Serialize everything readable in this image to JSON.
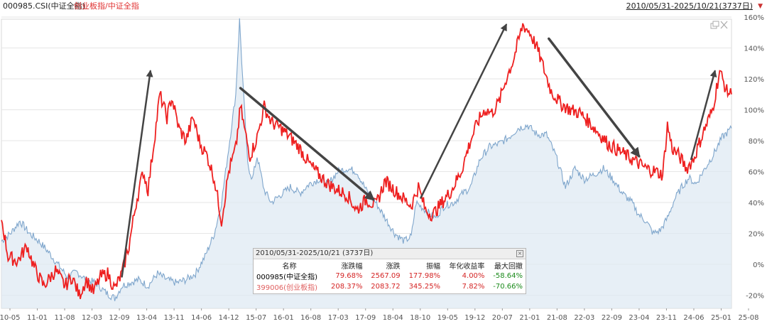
{
  "header": {
    "title_main": "000985.CSI(中证全指)",
    "title_ratio": "创业板指/中证全指",
    "range_label": "2010/05/31-2025/10/21(3737日)"
  },
  "colors": {
    "ratio_line": "#ee2020",
    "index_line": "#7fa6cc",
    "index_fill": "#dde8f2",
    "arrow": "#444444",
    "grid": "#e6e6e6"
  },
  "chart_data": {
    "type": "line",
    "x_ticks": [
      "10-05",
      "11-01",
      "11-08",
      "12-03",
      "12-09",
      "13-04",
      "13-11",
      "14-06",
      "14-12",
      "15-07",
      "16-01",
      "16-08",
      "17-03",
      "17-09",
      "18-04",
      "18-10",
      "19-05",
      "19-12",
      "20-07",
      "21-01",
      "21-08",
      "22-03",
      "22-09",
      "23-04",
      "23-11",
      "24-06",
      "25-01",
      "25-08"
    ],
    "y_ticks": [
      "-20%",
      "0%",
      "20%",
      "40%",
      "60%",
      "80%",
      "100%",
      "120%",
      "140%",
      "160%"
    ],
    "ylim": [
      -24,
      162
    ],
    "xlim": [
      2010.41,
      2025.8
    ],
    "series": [
      {
        "name": "创业板指/中证全指",
        "color": "#ee2020",
        "points": [
          [
            2010.41,
            30
          ],
          [
            2010.55,
            5
          ],
          [
            2010.75,
            2
          ],
          [
            2010.95,
            12
          ],
          [
            2011.1,
            -2
          ],
          [
            2011.3,
            -14
          ],
          [
            2011.55,
            -4
          ],
          [
            2011.75,
            -14
          ],
          [
            2011.9,
            -8
          ],
          [
            2012.05,
            -20
          ],
          [
            2012.2,
            -10
          ],
          [
            2012.35,
            -18
          ],
          [
            2012.5,
            -8
          ],
          [
            2012.65,
            -6
          ],
          [
            2012.8,
            -16
          ],
          [
            2012.95,
            -6
          ],
          [
            2013.1,
            12
          ],
          [
            2013.25,
            40
          ],
          [
            2013.4,
            60
          ],
          [
            2013.5,
            48
          ],
          [
            2013.65,
            85
          ],
          [
            2013.75,
            110
          ],
          [
            2013.9,
            95
          ],
          [
            2014.0,
            108
          ],
          [
            2014.15,
            88
          ],
          [
            2014.3,
            80
          ],
          [
            2014.45,
            95
          ],
          [
            2014.6,
            78
          ],
          [
            2014.75,
            70
          ],
          [
            2014.9,
            55
          ],
          [
            2015.05,
            28
          ],
          [
            2015.2,
            60
          ],
          [
            2015.35,
            75
          ],
          [
            2015.45,
            102
          ],
          [
            2015.55,
            85
          ],
          [
            2015.65,
            70
          ],
          [
            2015.8,
            82
          ],
          [
            2015.95,
            102
          ],
          [
            2016.1,
            92
          ],
          [
            2016.3,
            88
          ],
          [
            2016.5,
            82
          ],
          [
            2016.7,
            75
          ],
          [
            2016.9,
            65
          ],
          [
            2017.1,
            58
          ],
          [
            2017.3,
            52
          ],
          [
            2017.5,
            48
          ],
          [
            2017.7,
            45
          ],
          [
            2017.9,
            35
          ],
          [
            2018.1,
            42
          ],
          [
            2018.3,
            38
          ],
          [
            2018.5,
            54
          ],
          [
            2018.7,
            48
          ],
          [
            2018.9,
            42
          ],
          [
            2019.05,
            38
          ],
          [
            2019.2,
            50
          ],
          [
            2019.35,
            35
          ],
          [
            2019.5,
            32
          ],
          [
            2019.7,
            40
          ],
          [
            2019.9,
            48
          ],
          [
            2020.1,
            60
          ],
          [
            2020.3,
            80
          ],
          [
            2020.45,
            92
          ],
          [
            2020.6,
            100
          ],
          [
            2020.75,
            98
          ],
          [
            2020.9,
            105
          ],
          [
            2021.05,
            120
          ],
          [
            2021.2,
            132
          ],
          [
            2021.4,
            155
          ],
          [
            2021.55,
            150
          ],
          [
            2021.7,
            140
          ],
          [
            2021.85,
            126
          ],
          [
            2022.0,
            112
          ],
          [
            2022.2,
            104
          ],
          [
            2022.4,
            100
          ],
          [
            2022.6,
            98
          ],
          [
            2022.8,
            92
          ],
          [
            2023.0,
            85
          ],
          [
            2023.2,
            78
          ],
          [
            2023.4,
            74
          ],
          [
            2023.6,
            70
          ],
          [
            2023.8,
            66
          ],
          [
            2024.0,
            62
          ],
          [
            2024.2,
            60
          ],
          [
            2024.35,
            58
          ],
          [
            2024.45,
            90
          ],
          [
            2024.55,
            75
          ],
          [
            2024.7,
            70
          ],
          [
            2024.85,
            62
          ],
          [
            2025.0,
            68
          ],
          [
            2025.2,
            85
          ],
          [
            2025.4,
            100
          ],
          [
            2025.55,
            125
          ],
          [
            2025.7,
            112
          ],
          [
            2025.8,
            110
          ]
        ]
      },
      {
        "name": "000985.CSI(中证全指)",
        "color": "#7fa6cc",
        "points": [
          [
            2010.41,
            15
          ],
          [
            2010.6,
            20
          ],
          [
            2010.8,
            28
          ],
          [
            2011.0,
            20
          ],
          [
            2011.2,
            15
          ],
          [
            2011.4,
            8
          ],
          [
            2011.6,
            0
          ],
          [
            2011.8,
            -8
          ],
          [
            2012.0,
            -5
          ],
          [
            2012.2,
            -10
          ],
          [
            2012.4,
            -12
          ],
          [
            2012.6,
            -18
          ],
          [
            2012.8,
            -22
          ],
          [
            2012.95,
            -14
          ],
          [
            2013.1,
            -12
          ],
          [
            2013.3,
            -10
          ],
          [
            2013.5,
            -14
          ],
          [
            2013.7,
            -6
          ],
          [
            2013.9,
            -10
          ],
          [
            2014.1,
            -12
          ],
          [
            2014.3,
            -10
          ],
          [
            2014.5,
            -6
          ],
          [
            2014.7,
            5
          ],
          [
            2014.9,
            20
          ],
          [
            2015.05,
            40
          ],
          [
            2015.2,
            75
          ],
          [
            2015.35,
            110
          ],
          [
            2015.43,
            158
          ],
          [
            2015.5,
            118
          ],
          [
            2015.6,
            65
          ],
          [
            2015.7,
            55
          ],
          [
            2015.8,
            70
          ],
          [
            2015.95,
            48
          ],
          [
            2016.1,
            40
          ],
          [
            2016.3,
            45
          ],
          [
            2016.5,
            50
          ],
          [
            2016.7,
            46
          ],
          [
            2016.9,
            52
          ],
          [
            2017.1,
            55
          ],
          [
            2017.3,
            52
          ],
          [
            2017.5,
            60
          ],
          [
            2017.7,
            62
          ],
          [
            2017.9,
            60
          ],
          [
            2018.1,
            48
          ],
          [
            2018.3,
            40
          ],
          [
            2018.5,
            30
          ],
          [
            2018.7,
            20
          ],
          [
            2018.9,
            15
          ],
          [
            2019.05,
            18
          ],
          [
            2019.15,
            40
          ],
          [
            2019.35,
            35
          ],
          [
            2019.55,
            30
          ],
          [
            2019.75,
            38
          ],
          [
            2019.95,
            40
          ],
          [
            2020.1,
            45
          ],
          [
            2020.3,
            50
          ],
          [
            2020.5,
            68
          ],
          [
            2020.7,
            76
          ],
          [
            2020.9,
            78
          ],
          [
            2021.1,
            82
          ],
          [
            2021.3,
            88
          ],
          [
            2021.5,
            90
          ],
          [
            2021.7,
            84
          ],
          [
            2021.9,
            84
          ],
          [
            2022.1,
            70
          ],
          [
            2022.3,
            50
          ],
          [
            2022.5,
            62
          ],
          [
            2022.7,
            55
          ],
          [
            2022.9,
            58
          ],
          [
            2023.1,
            62
          ],
          [
            2023.3,
            55
          ],
          [
            2023.5,
            46
          ],
          [
            2023.7,
            40
          ],
          [
            2023.85,
            32
          ],
          [
            2024.0,
            28
          ],
          [
            2024.15,
            20
          ],
          [
            2024.3,
            22
          ],
          [
            2024.45,
            30
          ],
          [
            2024.6,
            42
          ],
          [
            2024.75,
            50
          ],
          [
            2024.9,
            56
          ],
          [
            2025.05,
            52
          ],
          [
            2025.2,
            60
          ],
          [
            2025.4,
            70
          ],
          [
            2025.6,
            82
          ],
          [
            2025.8,
            88
          ]
        ]
      }
    ],
    "arrows": [
      {
        "from": [
          2012.95,
          -8
        ],
        "to": [
          2013.55,
          125
        ],
        "weight": "thin"
      },
      {
        "from": [
          2015.45,
          114
        ],
        "to": [
          2018.25,
          42
        ],
        "weight": "thick"
      },
      {
        "from": [
          2019.25,
          43
        ],
        "to": [
          2021.05,
          155
        ],
        "weight": "thin"
      },
      {
        "from": [
          2021.95,
          146
        ],
        "to": [
          2023.85,
          70
        ],
        "weight": "thick"
      },
      {
        "from": [
          2024.95,
          68
        ],
        "to": [
          2025.45,
          125
        ],
        "weight": "thin"
      }
    ]
  },
  "stats": {
    "header": "2010/05/31-2025/10/21 (3737日)",
    "close": "×",
    "columns": [
      "名称",
      "涨跌幅",
      "涨跌",
      "振幅",
      "年化收益率",
      "最大回撤"
    ],
    "rows": [
      {
        "name": "000985(中证全指)",
        "change_pct": "79.68%",
        "change": "2567.09",
        "amplitude": "177.98%",
        "annual": "4.00%",
        "max_dd": "-58.64%"
      },
      {
        "name": "399006(创业板指)",
        "change_pct": "208.37%",
        "change": "2083.72",
        "amplitude": "345.25%",
        "annual": "7.82%",
        "max_dd": "-70.66%"
      }
    ]
  }
}
